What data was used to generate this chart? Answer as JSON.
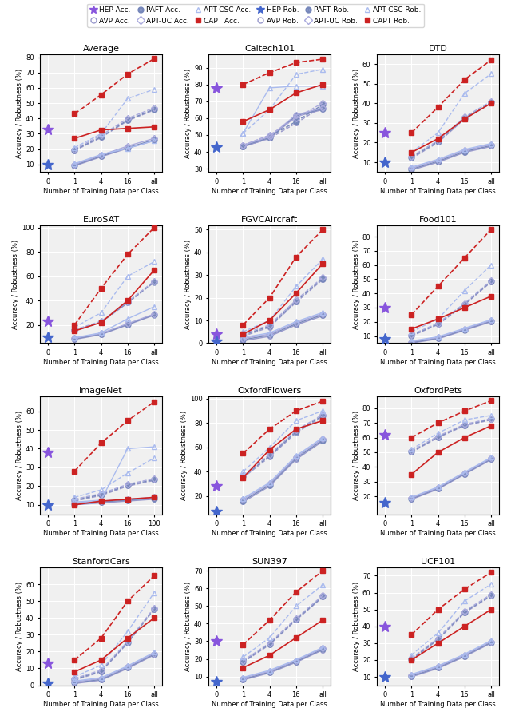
{
  "legend": {
    "HEP_acc_color": "#7B52AB",
    "HEP_rob_color": "#4169E1",
    "AVP_color": "#8888CC",
    "PAFT_color": "#7799CC",
    "APTUC_color": "#9999DD",
    "APTCSC_color": "#AAAAEE",
    "CAPT_color": "#CC3333",
    "acc_linestyle": "--",
    "rob_linestyle": "-"
  },
  "subplots": [
    {
      "title": "Average",
      "xlabel": "Number of Training Data per Class",
      "ylabel": "Accuracy / Robustness (%)",
      "xticks": [
        0,
        1,
        2,
        3,
        4
      ],
      "xticklabels": [
        "0",
        "1",
        "4",
        "16",
        "all"
      ],
      "ylim": [
        5,
        82
      ],
      "yticks": [
        10,
        20,
        30,
        40,
        50,
        60,
        70,
        80
      ],
      "HEP_acc_zero": 33,
      "HEP_rob_zero": 10,
      "AVP_acc": [
        19.0,
        27.5,
        38.5,
        45.5
      ],
      "AVP_rob": [
        9.0,
        15.0,
        20.5,
        25.5
      ],
      "PAFT_acc": [
        19.5,
        28.0,
        39.0,
        46.0
      ],
      "PAFT_rob": [
        9.5,
        15.5,
        21.0,
        26.0
      ],
      "APTUC_acc": [
        20.0,
        29.0,
        40.0,
        47.0
      ],
      "APTUC_rob": [
        10.0,
        16.0,
        22.0,
        27.0
      ],
      "APTCSC_acc": [
        21.0,
        30.0,
        53.0,
        59.0
      ],
      "APTCSC_rob": [
        10.5,
        16.5,
        20.5,
        25.5
      ],
      "CAPT_acc": [
        43.0,
        55.5,
        69.0,
        79.0
      ],
      "CAPT_rob": [
        27.0,
        32.5,
        33.5,
        34.5
      ]
    },
    {
      "title": "Caltech101",
      "xlabel": "Number of Training Data per Class",
      "ylabel": "Accuracy / Robustness (%)",
      "xticks": [
        0,
        1,
        2,
        3,
        4
      ],
      "xticklabels": [
        "0",
        "1",
        "4",
        "16",
        "all"
      ],
      "ylim": [
        28,
        98
      ],
      "yticks": [
        30,
        40,
        50,
        60,
        70,
        80,
        90
      ],
      "HEP_acc_zero": 78,
      "HEP_rob_zero": 43,
      "AVP_acc": [
        43.0,
        48.0,
        57.0,
        67.0
      ],
      "AVP_rob": [
        43.0,
        48.0,
        61.0,
        65.0
      ],
      "PAFT_acc": [
        43.5,
        49.0,
        58.0,
        68.0
      ],
      "PAFT_rob": [
        43.5,
        48.5,
        61.5,
        65.5
      ],
      "APTUC_acc": [
        44.0,
        50.0,
        60.0,
        69.0
      ],
      "APTUC_rob": [
        44.0,
        49.0,
        62.0,
        66.0
      ],
      "APTCSC_acc": [
        51.0,
        65.0,
        86.0,
        89.0
      ],
      "APTCSC_rob": [
        51.0,
        78.0,
        79.0,
        79.0
      ],
      "CAPT_acc": [
        80.0,
        87.0,
        93.0,
        95.0
      ],
      "CAPT_rob": [
        58.0,
        65.0,
        75.0,
        80.0
      ]
    },
    {
      "title": "DTD",
      "xlabel": "Number of Training Data per Class",
      "ylabel": "Accuracy / Robustness (%)",
      "xticks": [
        0,
        1,
        2,
        3,
        4
      ],
      "xticklabels": [
        "0",
        "1",
        "4",
        "16",
        "all"
      ],
      "ylim": [
        5,
        65
      ],
      "yticks": [
        10,
        20,
        30,
        40,
        50,
        60
      ],
      "HEP_acc_zero": 25,
      "HEP_rob_zero": 10,
      "AVP_acc": [
        12.0,
        20.0,
        32.0,
        40.0
      ],
      "AVP_rob": [
        6.0,
        10.0,
        15.0,
        18.0
      ],
      "PAFT_acc": [
        12.5,
        20.5,
        32.5,
        40.5
      ],
      "PAFT_rob": [
        6.5,
        10.5,
        15.5,
        18.5
      ],
      "APTUC_acc": [
        13.0,
        21.0,
        33.0,
        41.0
      ],
      "APTUC_rob": [
        7.0,
        11.0,
        16.0,
        19.0
      ],
      "APTCSC_acc": [
        15.0,
        25.0,
        45.0,
        55.0
      ],
      "APTCSC_rob": [
        7.5,
        11.5,
        16.5,
        19.5
      ],
      "CAPT_acc": [
        25.0,
        38.0,
        52.0,
        62.0
      ],
      "CAPT_rob": [
        15.0,
        22.0,
        32.0,
        40.0
      ]
    },
    {
      "title": "EuroSAT",
      "xlabel": "Number of Training Data per Class",
      "ylabel": "Accuracy / Robustness (%)",
      "xticks": [
        0,
        1,
        2,
        3,
        4
      ],
      "xticklabels": [
        "0",
        "1",
        "4",
        "16",
        "all"
      ],
      "ylim": [
        5,
        102
      ],
      "yticks": [
        20,
        40,
        60,
        80,
        100
      ],
      "HEP_acc_zero": 23,
      "HEP_rob_zero": 10,
      "AVP_acc": [
        15.0,
        22.0,
        38.0,
        55.0
      ],
      "AVP_rob": [
        8.0,
        12.0,
        20.0,
        28.0
      ],
      "PAFT_acc": [
        15.5,
        22.5,
        38.5,
        55.5
      ],
      "PAFT_rob": [
        8.5,
        12.5,
        20.5,
        28.5
      ],
      "APTUC_acc": [
        16.0,
        23.0,
        39.0,
        56.0
      ],
      "APTUC_rob": [
        9.0,
        13.0,
        21.0,
        29.0
      ],
      "APTCSC_acc": [
        18.0,
        30.0,
        60.0,
        72.0
      ],
      "APTCSC_rob": [
        9.5,
        13.5,
        25.0,
        35.0
      ],
      "CAPT_acc": [
        20.0,
        50.0,
        78.0,
        100.0
      ],
      "CAPT_rob": [
        15.0,
        22.0,
        40.0,
        65.0
      ]
    },
    {
      "title": "FGVCAircraft",
      "xlabel": "Number of Training Data per Class",
      "ylabel": "Accuracy / Robustness (%)",
      "xticks": [
        0,
        1,
        2,
        3,
        4
      ],
      "xticklabels": [
        "0",
        "1",
        "4",
        "16",
        "all"
      ],
      "ylim": [
        0,
        52
      ],
      "yticks": [
        0,
        10,
        20,
        30,
        40,
        50
      ],
      "HEP_acc_zero": 4,
      "HEP_rob_zero": 1,
      "AVP_acc": [
        3.0,
        7.0,
        18.0,
        28.0
      ],
      "AVP_rob": [
        1.0,
        3.0,
        8.0,
        12.0
      ],
      "PAFT_acc": [
        3.5,
        7.5,
        18.5,
        28.5
      ],
      "PAFT_rob": [
        1.5,
        3.5,
        8.5,
        12.5
      ],
      "APTUC_acc": [
        4.0,
        8.0,
        19.0,
        29.0
      ],
      "APTUC_rob": [
        2.0,
        4.0,
        9.0,
        13.0
      ],
      "APTCSC_acc": [
        5.0,
        10.0,
        25.0,
        37.0
      ],
      "APTCSC_rob": [
        2.5,
        4.5,
        9.5,
        13.5
      ],
      "CAPT_acc": [
        8.0,
        20.0,
        38.0,
        50.0
      ],
      "CAPT_rob": [
        4.0,
        10.0,
        22.0,
        35.0
      ]
    },
    {
      "title": "Food101",
      "xlabel": "Number of Training Data per Class",
      "ylabel": "Accuracy / Robustness (%)",
      "xticks": [
        0,
        1,
        2,
        3,
        4
      ],
      "xticklabels": [
        "0",
        "1",
        "4",
        "16",
        "all"
      ],
      "ylim": [
        5,
        88
      ],
      "yticks": [
        10,
        20,
        30,
        40,
        50,
        60,
        70,
        80
      ],
      "HEP_acc_zero": 30,
      "HEP_rob_zero": 8,
      "AVP_acc": [
        10.0,
        18.0,
        32.0,
        48.0
      ],
      "AVP_rob": [
        5.0,
        8.0,
        14.0,
        20.0
      ],
      "PAFT_acc": [
        10.5,
        18.5,
        32.5,
        48.5
      ],
      "PAFT_rob": [
        5.5,
        8.5,
        14.5,
        20.5
      ],
      "APTUC_acc": [
        11.0,
        19.0,
        33.0,
        49.0
      ],
      "APTUC_rob": [
        6.0,
        9.0,
        15.0,
        21.0
      ],
      "APTCSC_acc": [
        13.0,
        22.0,
        42.0,
        60.0
      ],
      "APTCSC_rob": [
        6.5,
        9.5,
        15.5,
        21.5
      ],
      "CAPT_acc": [
        25.0,
        45.0,
        65.0,
        85.0
      ],
      "CAPT_rob": [
        15.0,
        22.0,
        30.0,
        38.0
      ]
    },
    {
      "title": "ImageNet",
      "xlabel": "Number of Training Data per Class",
      "ylabel": "Accuracy / Robustness (%)",
      "xticks": [
        0,
        1,
        2,
        3,
        4
      ],
      "xticklabels": [
        "0",
        "1",
        "4",
        "16",
        "100"
      ],
      "ylim": [
        5,
        68
      ],
      "yticks": [
        10,
        20,
        30,
        40,
        50,
        60
      ],
      "HEP_acc_zero": 38,
      "HEP_rob_zero": 10,
      "AVP_acc": [
        12.0,
        15.0,
        20.0,
        23.0
      ],
      "AVP_rob": [
        10.0,
        11.0,
        12.0,
        13.0
      ],
      "PAFT_acc": [
        12.5,
        15.5,
        20.5,
        23.5
      ],
      "PAFT_rob": [
        10.5,
        11.5,
        12.5,
        13.5
      ],
      "APTUC_acc": [
        13.0,
        16.0,
        21.0,
        24.0
      ],
      "APTUC_rob": [
        11.0,
        12.0,
        13.0,
        14.0
      ],
      "APTCSC_acc": [
        14.0,
        18.0,
        27.0,
        35.0
      ],
      "APTCSC_rob": [
        11.5,
        12.5,
        40.0,
        41.0
      ],
      "CAPT_acc": [
        28.0,
        43.0,
        55.0,
        65.0
      ],
      "CAPT_rob": [
        10.0,
        12.0,
        13.0,
        14.0
      ]
    },
    {
      "title": "OxfordFlowers",
      "xlabel": "Number of Training Data per Class",
      "ylabel": "Accuracy / Robustness (%)",
      "xticks": [
        0,
        1,
        2,
        3,
        4
      ],
      "xticklabels": [
        "0",
        "1",
        "4",
        "16",
        "all"
      ],
      "ylim": [
        5,
        102
      ],
      "yticks": [
        20,
        40,
        60,
        80,
        100
      ],
      "HEP_acc_zero": 28,
      "HEP_rob_zero": 7,
      "AVP_acc": [
        35.0,
        52.0,
        72.0,
        85.0
      ],
      "AVP_rob": [
        15.0,
        28.0,
        50.0,
        65.0
      ],
      "PAFT_acc": [
        36.0,
        53.0,
        73.0,
        86.0
      ],
      "PAFT_rob": [
        16.0,
        29.0,
        51.0,
        66.0
      ],
      "APTUC_acc": [
        37.0,
        54.0,
        74.0,
        87.0
      ],
      "APTUC_rob": [
        17.0,
        30.0,
        52.0,
        67.0
      ],
      "APTCSC_acc": [
        40.0,
        60.0,
        82.0,
        90.0
      ],
      "APTCSC_rob": [
        18.0,
        31.0,
        53.0,
        68.0
      ],
      "CAPT_acc": [
        55.0,
        75.0,
        90.0,
        98.0
      ],
      "CAPT_rob": [
        35.0,
        58.0,
        75.0,
        82.0
      ]
    },
    {
      "title": "OxfordPets",
      "xlabel": "Number of Training Data per Class",
      "ylabel": "Accuracy / Robustness (%)",
      "xticks": [
        0,
        1,
        2,
        3,
        4
      ],
      "xticklabels": [
        "0",
        "1",
        "4",
        "16",
        "all"
      ],
      "ylim": [
        8,
        88
      ],
      "yticks": [
        20,
        30,
        40,
        50,
        60,
        70,
        80
      ],
      "HEP_acc_zero": 62,
      "HEP_rob_zero": 16,
      "AVP_acc": [
        50.0,
        60.0,
        68.0,
        72.0
      ],
      "AVP_rob": [
        18.0,
        25.0,
        35.0,
        45.0
      ],
      "PAFT_acc": [
        50.5,
        60.5,
        68.5,
        72.5
      ],
      "PAFT_rob": [
        18.5,
        25.5,
        35.5,
        45.5
      ],
      "APTUC_acc": [
        51.0,
        61.0,
        69.0,
        73.0
      ],
      "APTUC_rob": [
        19.0,
        26.0,
        36.0,
        46.0
      ],
      "APTCSC_acc": [
        52.0,
        63.0,
        72.0,
        75.0
      ],
      "APTCSC_rob": [
        19.5,
        26.5,
        36.5,
        46.5
      ],
      "CAPT_acc": [
        60.0,
        70.0,
        78.0,
        85.0
      ],
      "CAPT_rob": [
        35.0,
        50.0,
        60.0,
        68.0
      ]
    },
    {
      "title": "StanfordCars",
      "xlabel": "Number of Training Data per Class",
      "ylabel": "Accuracy / Robustness (%)",
      "xticks": [
        0,
        1,
        2,
        3,
        4
      ],
      "xticklabels": [
        "0",
        "1",
        "4",
        "16",
        "all"
      ],
      "ylim": [
        0,
        70
      ],
      "yticks": [
        0,
        10,
        20,
        30,
        40,
        50,
        60
      ],
      "HEP_acc_zero": 13,
      "HEP_rob_zero": 1,
      "AVP_acc": [
        3.0,
        8.0,
        25.0,
        45.0
      ],
      "AVP_rob": [
        1.0,
        3.0,
        10.0,
        18.0
      ],
      "PAFT_acc": [
        3.5,
        8.5,
        25.5,
        45.5
      ],
      "PAFT_rob": [
        1.5,
        3.5,
        10.5,
        18.5
      ],
      "APTUC_acc": [
        4.0,
        9.0,
        26.0,
        46.0
      ],
      "APTUC_rob": [
        2.0,
        4.0,
        11.0,
        19.0
      ],
      "APTCSC_acc": [
        5.0,
        12.0,
        32.0,
        55.0
      ],
      "APTCSC_rob": [
        2.5,
        4.5,
        11.5,
        19.5
      ],
      "CAPT_acc": [
        15.0,
        28.0,
        50.0,
        65.0
      ],
      "CAPT_rob": [
        8.0,
        15.0,
        28.0,
        40.0
      ]
    },
    {
      "title": "SUN397",
      "xlabel": "Number of Training Data per Class",
      "ylabel": "Accuracy / Robustness (%)",
      "xticks": [
        0,
        1,
        2,
        3,
        4
      ],
      "xticklabels": [
        "0",
        "1",
        "4",
        "16",
        "all"
      ],
      "ylim": [
        5,
        72
      ],
      "yticks": [
        10,
        20,
        30,
        40,
        50,
        60,
        70
      ],
      "HEP_acc_zero": 30,
      "HEP_rob_zero": 7,
      "AVP_acc": [
        18.0,
        28.0,
        42.0,
        55.0
      ],
      "AVP_rob": [
        8.0,
        12.0,
        18.0,
        25.0
      ],
      "PAFT_acc": [
        18.5,
        28.5,
        42.5,
        55.5
      ],
      "PAFT_rob": [
        8.5,
        12.5,
        18.5,
        25.5
      ],
      "APTUC_acc": [
        19.0,
        29.0,
        43.0,
        56.0
      ],
      "APTUC_rob": [
        9.0,
        13.0,
        19.0,
        26.0
      ],
      "APTCSC_acc": [
        21.0,
        32.0,
        50.0,
        62.0
      ],
      "APTCSC_rob": [
        9.5,
        13.5,
        19.5,
        26.5
      ],
      "CAPT_acc": [
        28.0,
        42.0,
        58.0,
        70.0
      ],
      "CAPT_rob": [
        15.0,
        22.0,
        32.0,
        42.0
      ]
    },
    {
      "title": "UCF101",
      "xlabel": "Number of Training Data per Class",
      "ylabel": "Accuracy / Robustness (%)",
      "xticks": [
        0,
        1,
        2,
        3,
        4
      ],
      "xticklabels": [
        "0",
        "1",
        "4",
        "16",
        "all"
      ],
      "ylim": [
        5,
        75
      ],
      "yticks": [
        10,
        20,
        30,
        40,
        50,
        60,
        70
      ],
      "HEP_acc_zero": 40,
      "HEP_rob_zero": 10,
      "AVP_acc": [
        20.0,
        32.0,
        48.0,
        58.0
      ],
      "AVP_rob": [
        10.0,
        15.0,
        22.0,
        30.0
      ],
      "PAFT_acc": [
        20.5,
        32.5,
        48.5,
        58.5
      ],
      "PAFT_rob": [
        10.5,
        15.5,
        22.5,
        30.5
      ],
      "APTUC_acc": [
        21.0,
        33.0,
        49.0,
        59.0
      ],
      "APTUC_rob": [
        11.0,
        16.0,
        23.0,
        31.0
      ],
      "APTCSC_acc": [
        23.0,
        36.0,
        55.0,
        65.0
      ],
      "APTCSC_rob": [
        11.5,
        16.5,
        23.5,
        31.5
      ],
      "CAPT_acc": [
        35.0,
        50.0,
        62.0,
        72.0
      ],
      "CAPT_rob": [
        20.0,
        30.0,
        40.0,
        50.0
      ]
    }
  ]
}
